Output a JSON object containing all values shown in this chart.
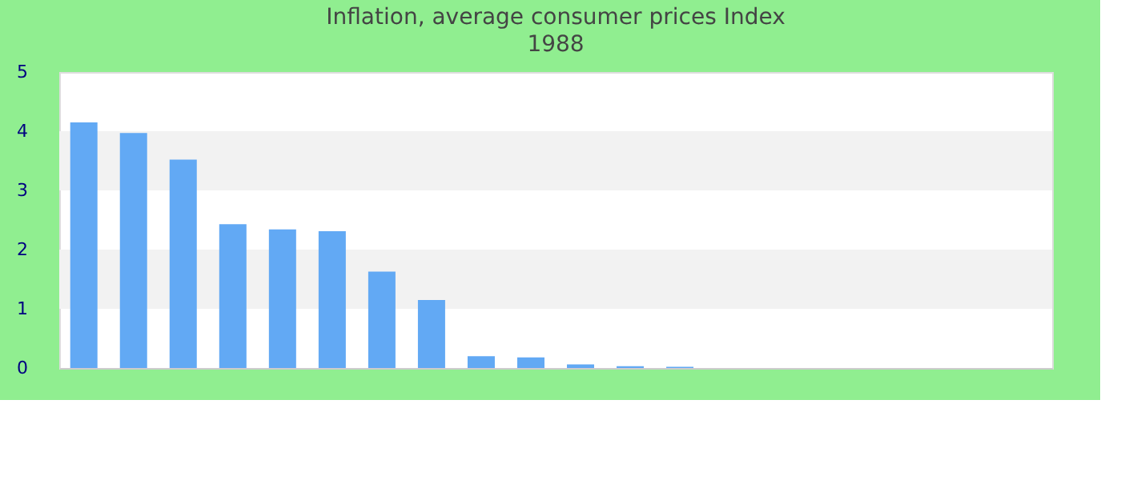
{
  "chart_data": {
    "type": "bar",
    "title": "Inflation, average consumer prices  Index",
    "subtitle": "1988",
    "categories": [
      null,
      null,
      null,
      null,
      null,
      null,
      null,
      null,
      null,
      null,
      null,
      null,
      null,
      null,
      null,
      null,
      null,
      null,
      null,
      null
    ],
    "values": [
      4.15,
      3.97,
      3.52,
      2.43,
      2.34,
      2.31,
      1.63,
      1.15,
      0.2,
      0.18,
      0.06,
      0.03,
      0.02,
      0,
      0,
      0,
      0,
      0,
      0,
      0
    ],
    "color": "#62a9f4",
    "ylim": [
      0,
      5
    ],
    "yticks": [
      0,
      1,
      2,
      3,
      4,
      5
    ],
    "bands": [
      {
        "axis": "y",
        "from": 1,
        "to": 2,
        "color": "#f2f2f2"
      },
      {
        "axis": "y",
        "from": 3,
        "to": 4,
        "color": "#f2f2f2"
      }
    ]
  }
}
